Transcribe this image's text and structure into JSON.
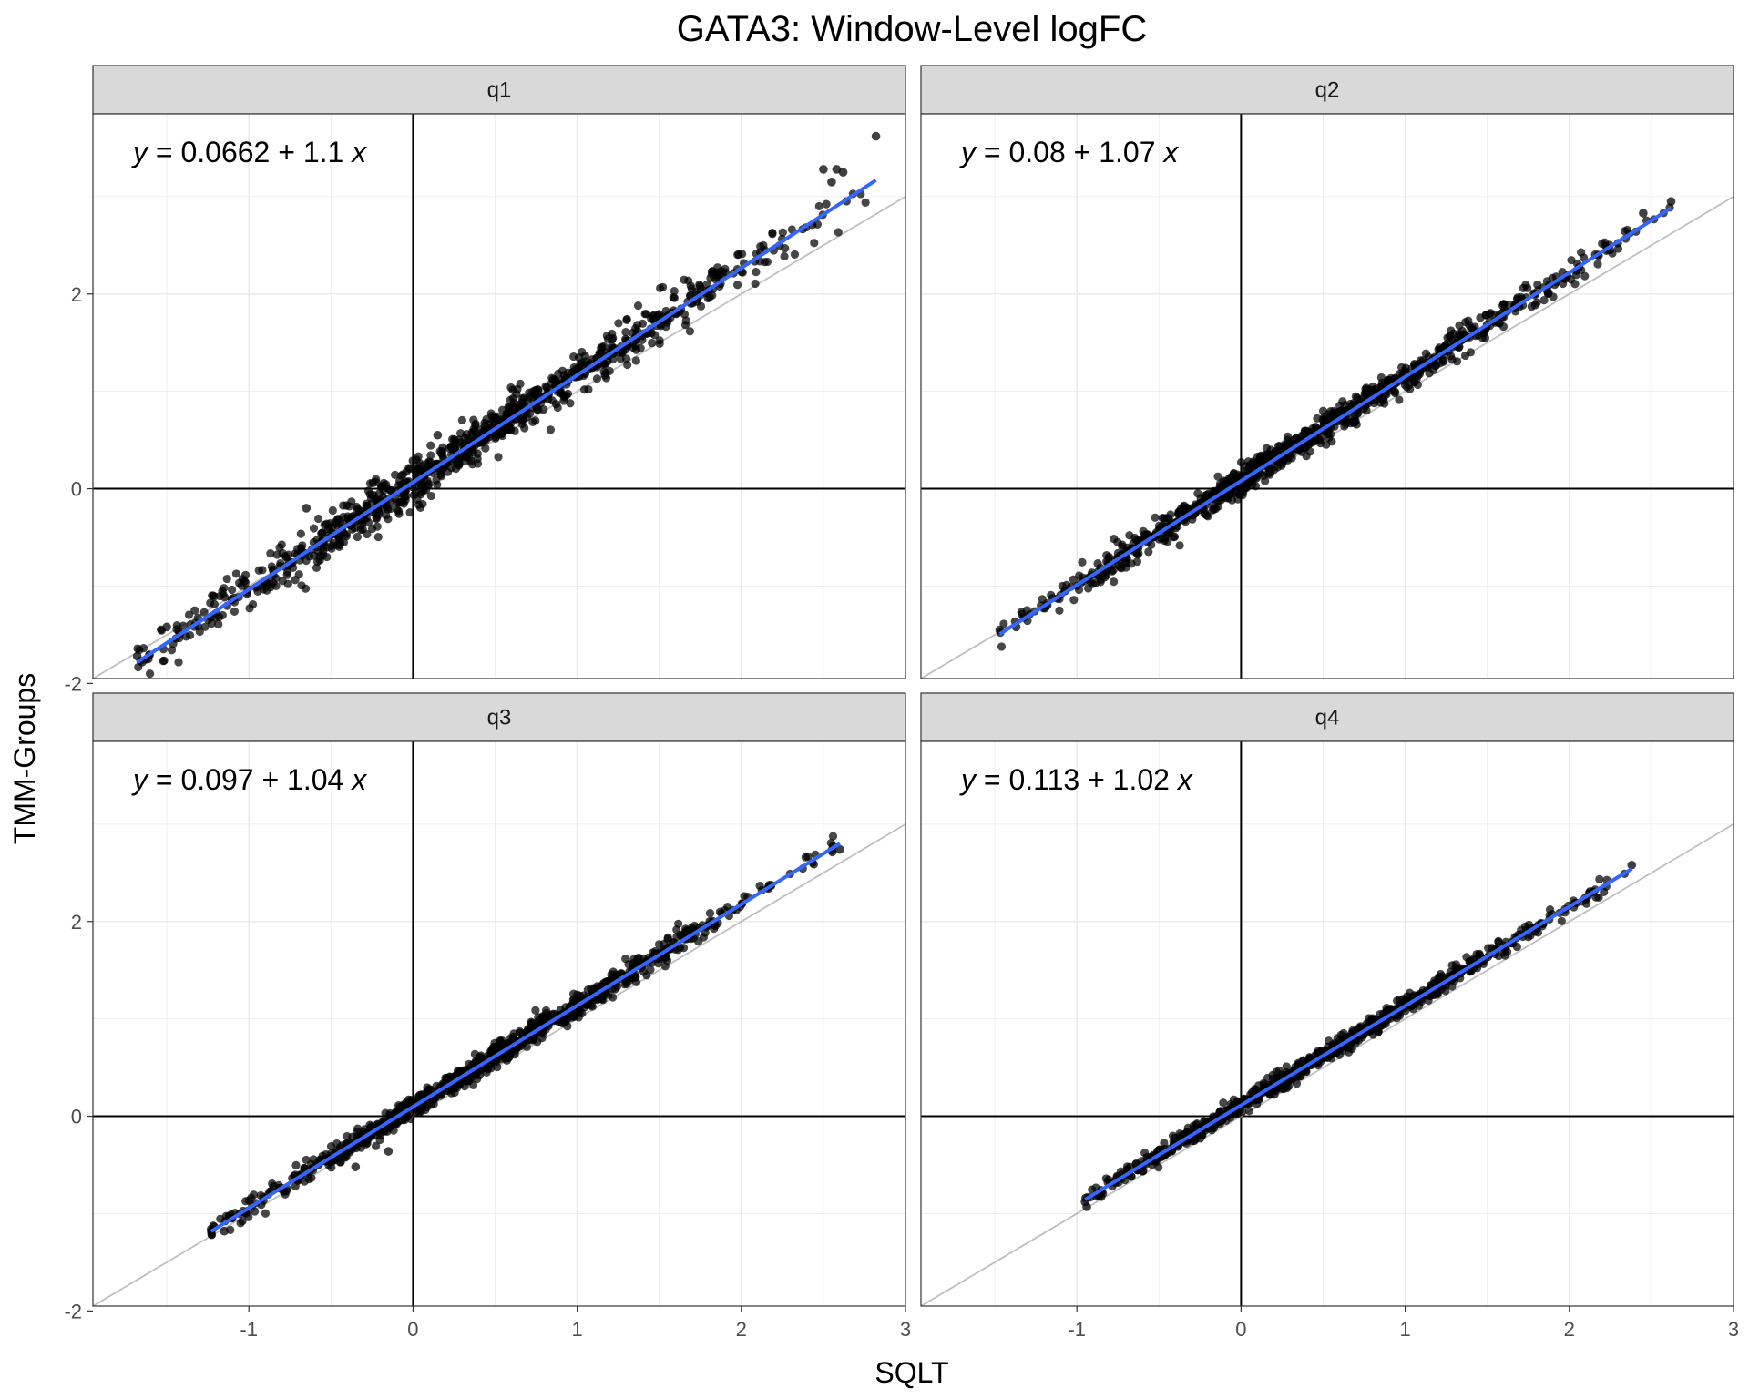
{
  "chart_data": {
    "type": "scatter",
    "title": "GATA3: Window-Level logFC",
    "xlabel": "SQLT",
    "ylabel": "TMM-Groups",
    "xlim": [
      -1.95,
      3.0
    ],
    "ylim": [
      -1.95,
      3.85
    ],
    "x_ticks": [
      -1,
      0,
      1,
      2,
      3
    ],
    "y_ticks": [
      -2,
      0,
      2
    ],
    "grid": true,
    "reference_line": {
      "intercept": 0,
      "slope": 1,
      "color": "#bebebe"
    },
    "zero_lines": {
      "color": "#000000"
    },
    "fit_color": "#3366ff",
    "point_color": "#000000",
    "panels": [
      {
        "strip": "q1",
        "equation": {
          "y_var": "y",
          "eq": " = 0.0662 + 1.1 ",
          "x_var": "x"
        },
        "fit": {
          "intercept": 0.0662,
          "slope": 1.1,
          "x_range": [
            -1.68,
            2.82
          ]
        },
        "point_range": [
          -1.68,
          2.82
        ],
        "spread": 0.11,
        "outliers": [
          [
            -1.68,
            -1.72
          ],
          [
            -1.65,
            -1.78
          ],
          [
            2.82,
            3.62
          ],
          [
            2.5,
            3.28
          ],
          [
            2.58,
            3.28
          ],
          [
            2.62,
            3.25
          ],
          [
            2.55,
            3.15
          ],
          [
            -1.5,
            -1.42
          ],
          [
            -0.65,
            -0.2
          ],
          [
            0.15,
            0.55
          ]
        ]
      },
      {
        "strip": "q2",
        "equation": {
          "y_var": "y",
          "eq": " = 0.08 + 1.07 ",
          "x_var": "x"
        },
        "fit": {
          "intercept": 0.08,
          "slope": 1.07,
          "x_range": [
            -1.47,
            2.62
          ]
        },
        "point_range": [
          -1.47,
          2.62
        ],
        "spread": 0.07,
        "outliers": [
          [
            -1.47,
            -1.45
          ],
          [
            -1.37,
            -1.42
          ],
          [
            2.62,
            2.95
          ],
          [
            2.45,
            2.83
          ]
        ]
      },
      {
        "strip": "q3",
        "equation": {
          "y_var": "y",
          "eq": " = 0.097 + 1.04 ",
          "x_var": "x"
        },
        "fit": {
          "intercept": 0.097,
          "slope": 1.04,
          "x_range": [
            -1.23,
            2.6
          ]
        },
        "point_range": [
          -1.23,
          2.6
        ],
        "spread": 0.06,
        "outliers": [
          [
            -1.23,
            -1.16
          ],
          [
            -1.15,
            -1.18
          ],
          [
            2.6,
            2.74
          ],
          [
            2.55,
            2.73
          ],
          [
            -0.35,
            -0.52
          ],
          [
            -0.15,
            -0.36
          ]
        ]
      },
      {
        "strip": "q4",
        "equation": {
          "y_var": "y",
          "eq": " = 0.113 + 1.02 ",
          "x_var": "x"
        },
        "fit": {
          "intercept": 0.113,
          "slope": 1.02,
          "x_range": [
            -0.95,
            2.38
          ]
        },
        "point_range": [
          -0.95,
          2.38
        ],
        "spread": 0.045,
        "outliers": [
          [
            -0.95,
            -0.88
          ],
          [
            2.38,
            2.58
          ],
          [
            -0.94,
            -0.93
          ]
        ]
      }
    ]
  }
}
